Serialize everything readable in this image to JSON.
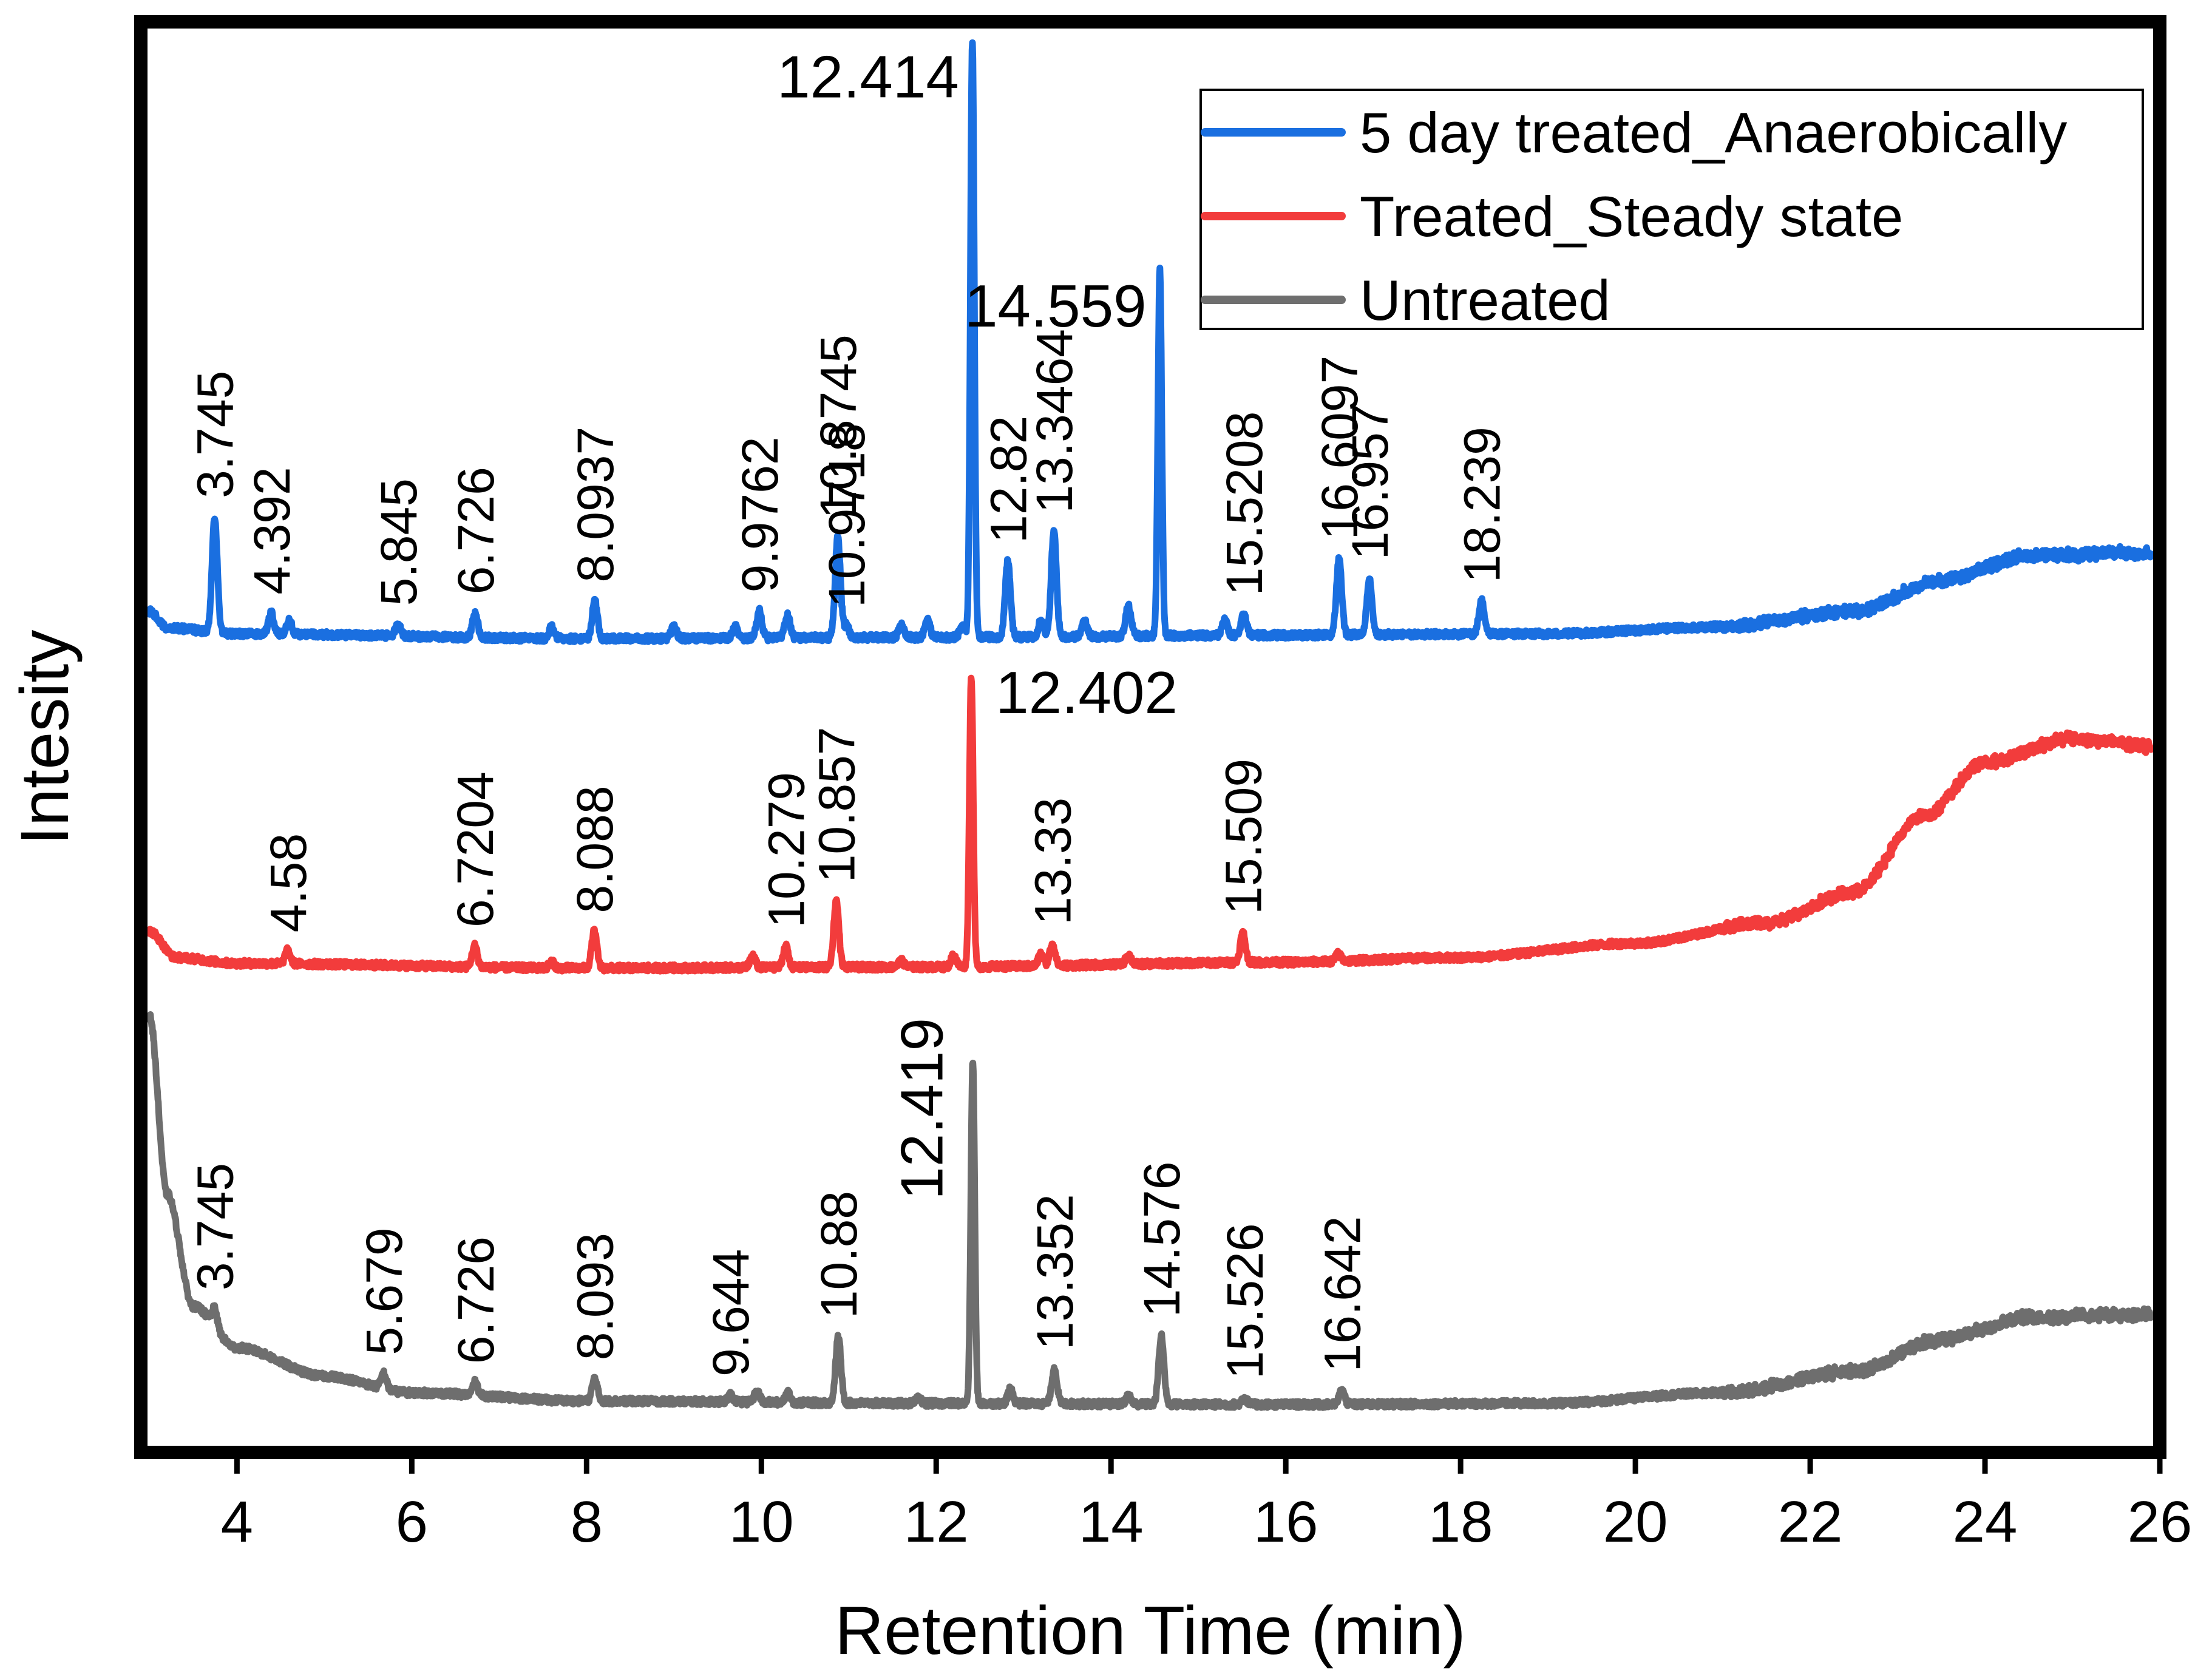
{
  "chart_data": {
    "type": "line",
    "xlabel": "Retention Time (min)",
    "ylabel": "Intesity",
    "xlim": [
      2.9,
      26.0
    ],
    "x_ticks": [
      4,
      6,
      8,
      10,
      12,
      14,
      16,
      18,
      20,
      22,
      24,
      26
    ],
    "y_ticks": [],
    "grid": false,
    "legend_position": "top-right",
    "series": [
      {
        "name": "5 day treated_Anaerobically",
        "color": "#1a6fe0",
        "baseline": [
          [
            3.0,
            2.6
          ],
          [
            3.2,
            1.2
          ],
          [
            4.0,
            0.7
          ],
          [
            8.0,
            0.3
          ],
          [
            12.0,
            0.4
          ],
          [
            16.0,
            0.6
          ],
          [
            19.0,
            0.7
          ],
          [
            21.0,
            1.3
          ],
          [
            22.5,
            2.6
          ],
          [
            23.5,
            5.2
          ],
          [
            24.5,
            7.3
          ],
          [
            26.0,
            7.6
          ]
        ],
        "peaks": [
          {
            "rt": 3.745,
            "height": 9.8,
            "label": "3.745"
          },
          {
            "rt": 4.392,
            "height": 1.8,
            "label": "4.392"
          },
          {
            "rt": 4.6,
            "height": 1.1
          },
          {
            "rt": 5.845,
            "height": 1.0,
            "label": "5.845"
          },
          {
            "rt": 6.726,
            "height": 2.1,
            "label": "6.726"
          },
          {
            "rt": 7.6,
            "height": 1.0
          },
          {
            "rt": 8.0937,
            "height": 3.2,
            "label": "8.0937"
          },
          {
            "rt": 9.0,
            "height": 1.0
          },
          {
            "rt": 9.7,
            "height": 1.0
          },
          {
            "rt": 9.9762,
            "height": 2.3,
            "label": "9.9762"
          },
          {
            "rt": 10.3,
            "height": 1.9
          },
          {
            "rt": 10.8745,
            "height": 8.5,
            "label": "10.8745"
          },
          {
            "rt": 10.9718,
            "height": 1.0,
            "label": "10.9718"
          },
          {
            "rt": 11.6,
            "height": 1.0
          },
          {
            "rt": 11.9,
            "height": 1.5
          },
          {
            "rt": 12.3,
            "height": 1.0
          },
          {
            "rt": 12.414,
            "height": 50.5,
            "label": "12.414"
          },
          {
            "rt": 12.82,
            "height": 6.4,
            "label": "12.82"
          },
          {
            "rt": 13.2,
            "height": 1.5
          },
          {
            "rt": 13.3464,
            "height": 8.9,
            "label": "13.3464"
          },
          {
            "rt": 13.7,
            "height": 1.3
          },
          {
            "rt": 14.2,
            "height": 2.6
          },
          {
            "rt": 14.559,
            "height": 31.0,
            "label": "14.559"
          },
          {
            "rt": 15.3,
            "height": 1.3
          },
          {
            "rt": 15.5208,
            "height": 1.8,
            "label": "15.5208"
          },
          {
            "rt": 16.6097,
            "height": 6.5,
            "label": "16.6097"
          },
          {
            "rt": 16.957,
            "height": 4.8,
            "label": "16.957"
          },
          {
            "rt": 18.239,
            "height": 2.8,
            "label": "18.239"
          }
        ]
      },
      {
        "name": "Treated_Steady state",
        "color": "#f23c3c",
        "baseline": [
          [
            3.0,
            3.2
          ],
          [
            3.3,
            1.0
          ],
          [
            4.0,
            0.5
          ],
          [
            8.0,
            0.1
          ],
          [
            12.0,
            0.2
          ],
          [
            16.0,
            0.6
          ],
          [
            18.0,
            1.0
          ],
          [
            20.0,
            2.2
          ],
          [
            21.5,
            3.9
          ],
          [
            22.5,
            6.5
          ],
          [
            23.3,
            13.0
          ],
          [
            24.0,
            17.5
          ],
          [
            25.0,
            19.5
          ],
          [
            26.0,
            18.8
          ]
        ],
        "peaks": [
          {
            "rt": 4.58,
            "height": 1.1,
            "label": "4.58"
          },
          {
            "rt": 6.7204,
            "height": 1.8,
            "label": "6.7204"
          },
          {
            "rt": 7.6,
            "height": 0.5
          },
          {
            "rt": 8.088,
            "height": 3.1,
            "label": "8.088"
          },
          {
            "rt": 9.9,
            "height": 1.0
          },
          {
            "rt": 10.279,
            "height": 1.8,
            "label": "10.279"
          },
          {
            "rt": 10.857,
            "height": 5.6,
            "label": "10.857"
          },
          {
            "rt": 11.6,
            "height": 0.5
          },
          {
            "rt": 12.2,
            "height": 1.0
          },
          {
            "rt": 12.402,
            "height": 24.5,
            "label": "12.402"
          },
          {
            "rt": 13.2,
            "height": 1.0
          },
          {
            "rt": 13.33,
            "height": 1.9,
            "label": "13.33"
          },
          {
            "rt": 14.2,
            "height": 0.8
          },
          {
            "rt": 15.509,
            "height": 2.5,
            "label": "15.509"
          },
          {
            "rt": 16.6,
            "height": 0.6
          }
        ]
      },
      {
        "name": "Untreated",
        "color": "#6e6e6e",
        "baseline": [
          [
            3.0,
            33.0
          ],
          [
            3.2,
            18.0
          ],
          [
            3.5,
            8.5
          ],
          [
            4.0,
            5.0
          ],
          [
            5.0,
            2.6
          ],
          [
            6.0,
            1.2
          ],
          [
            8.0,
            0.5
          ],
          [
            12.0,
            0.3
          ],
          [
            16.0,
            0.2
          ],
          [
            19.0,
            0.3
          ],
          [
            21.0,
            1.2
          ],
          [
            22.5,
            3.0
          ],
          [
            23.5,
            5.7
          ],
          [
            24.5,
            7.6
          ],
          [
            26.0,
            7.8
          ]
        ],
        "peaks": [
          {
            "rt": 3.745,
            "height": 1.5,
            "label": "3.745"
          },
          {
            "rt": 5.679,
            "height": 1.3,
            "label": "5.679"
          },
          {
            "rt": 6.726,
            "height": 1.1,
            "label": "6.726"
          },
          {
            "rt": 8.093,
            "height": 1.9,
            "label": "8.093"
          },
          {
            "rt": 9.644,
            "height": 0.6,
            "label": "9.644"
          },
          {
            "rt": 9.95,
            "height": 0.9
          },
          {
            "rt": 10.3,
            "height": 0.8
          },
          {
            "rt": 10.88,
            "height": 5.6,
            "label": "10.88"
          },
          {
            "rt": 11.8,
            "height": 0.4
          },
          {
            "rt": 12.419,
            "height": 29.0,
            "label": "12.419"
          },
          {
            "rt": 12.85,
            "height": 1.2
          },
          {
            "rt": 13.352,
            "height": 3.0,
            "label": "13.352"
          },
          {
            "rt": 14.2,
            "height": 0.7
          },
          {
            "rt": 14.576,
            "height": 5.8,
            "label": "14.576"
          },
          {
            "rt": 15.526,
            "height": 0.6,
            "label": "15.526"
          },
          {
            "rt": 16.642,
            "height": 1.2,
            "label": "16.642"
          }
        ]
      }
    ]
  }
}
